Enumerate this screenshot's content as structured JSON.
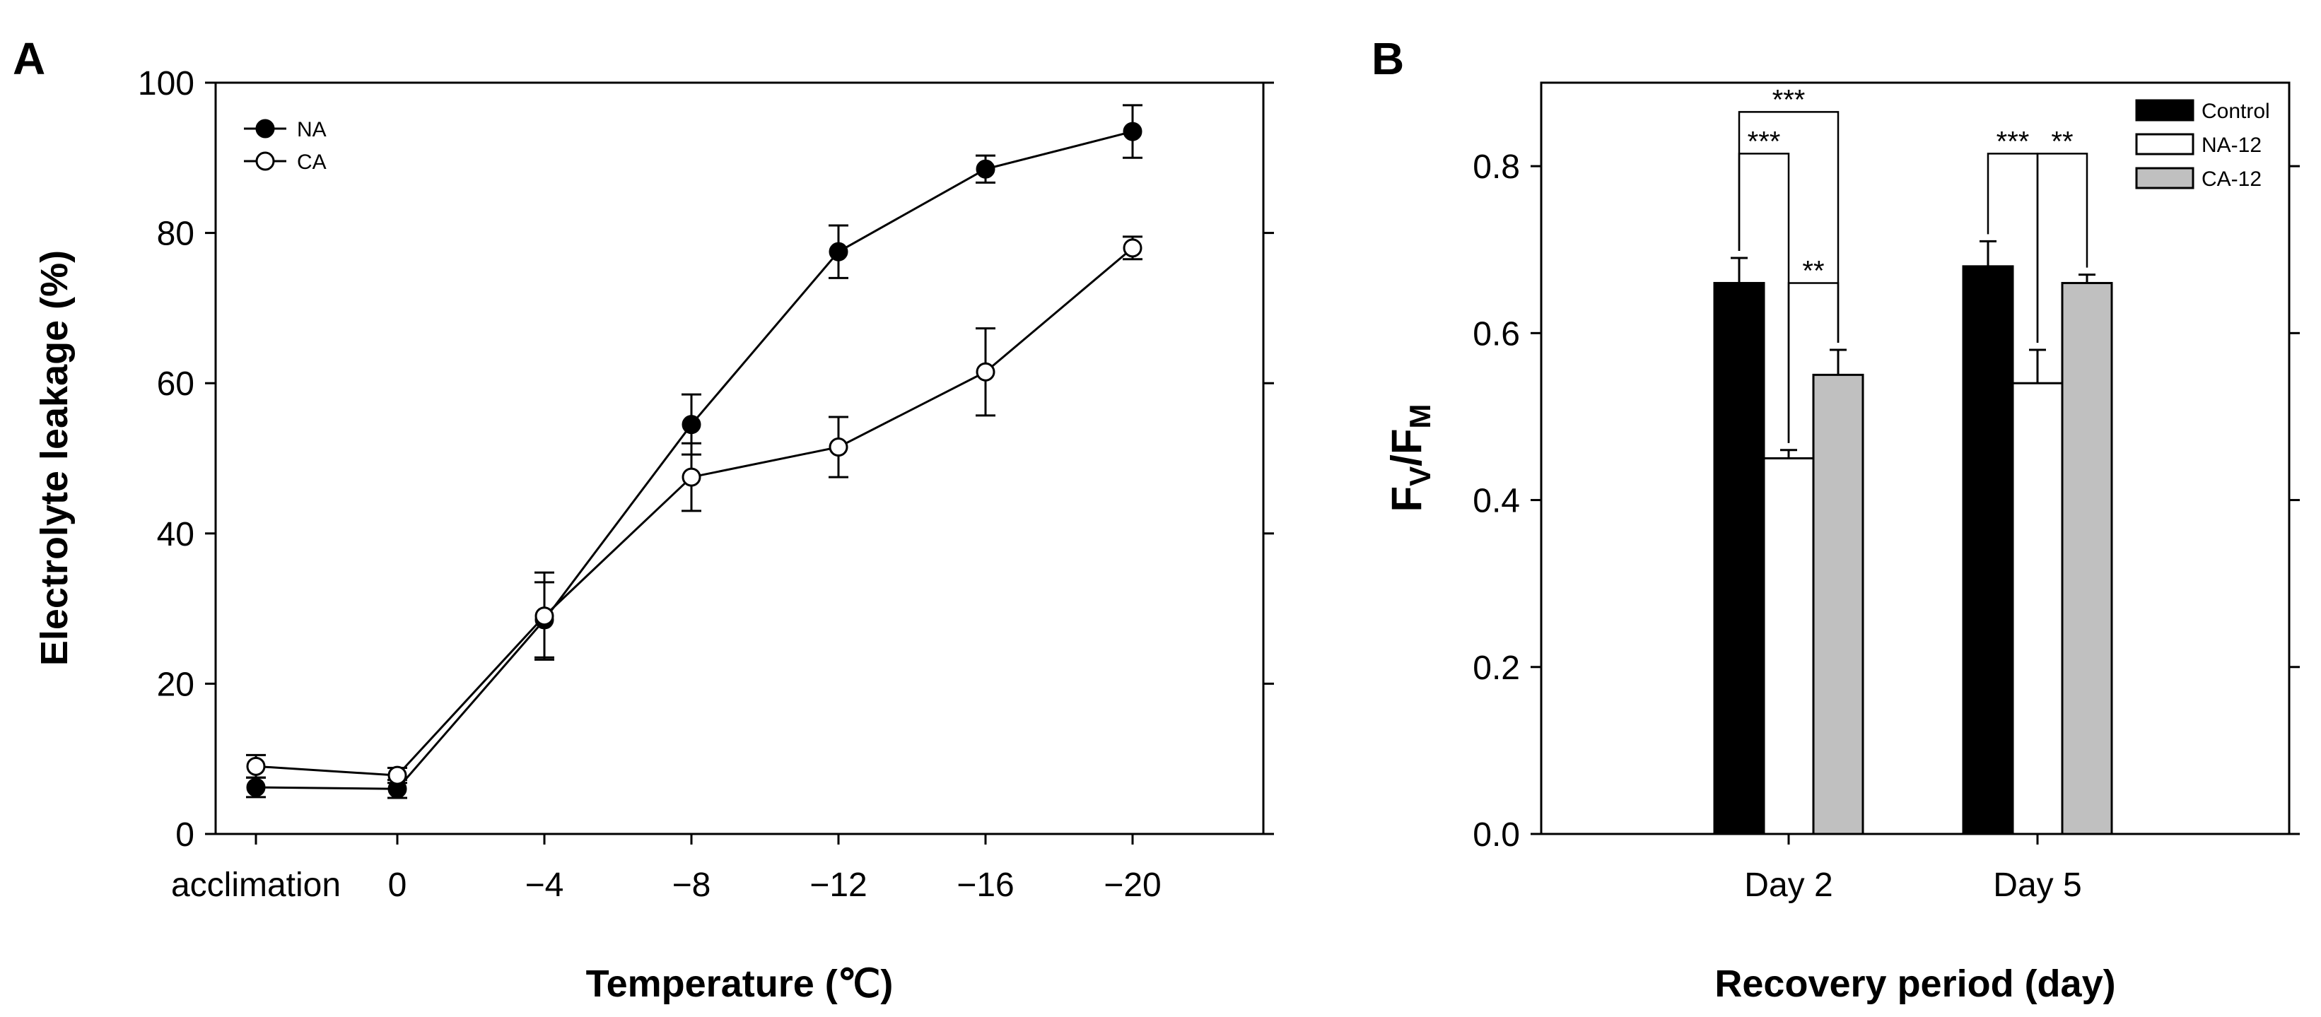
{
  "chart_data": [
    {
      "panel": "A",
      "type": "line",
      "title": "",
      "xlabel": "Temperature (℃)",
      "ylabel": "Electrolyte leakage (%)",
      "ylim": [
        0,
        100
      ],
      "yticks": [
        "0",
        "20",
        "40",
        "60",
        "80",
        "100"
      ],
      "categories": [
        "acclimation",
        "0",
        "−4",
        "−8",
        "−12",
        "−16",
        "−20"
      ],
      "series": [
        {
          "name": "NA",
          "marker": "filled-circle",
          "values": [
            6.2,
            6.0,
            28.5,
            54.5,
            77.5,
            88.5,
            93.5
          ],
          "errors": [
            1.3,
            1.2,
            5.0,
            4.0,
            3.5,
            1.8,
            3.5
          ]
        },
        {
          "name": "CA",
          "marker": "open-circle",
          "values": [
            9.0,
            7.8,
            29.0,
            47.5,
            51.5,
            61.5,
            78.0
          ],
          "errors": [
            1.5,
            1.0,
            5.8,
            4.5,
            4.0,
            5.8,
            1.5
          ]
        }
      ],
      "legend_position": "top-left",
      "grid": false
    },
    {
      "panel": "B",
      "type": "bar",
      "title": "",
      "xlabel": "Recovery period (day)",
      "ylabel_main": "F",
      "ylabel_sub1": "V",
      "ylabel_slash": "/F",
      "ylabel_sub2": "M",
      "ylim": [
        0,
        0.9
      ],
      "yticks": [
        "0.0",
        "0.2",
        "0.4",
        "0.6",
        "0.8"
      ],
      "categories": [
        "Day 2",
        "Day 5"
      ],
      "series": [
        {
          "name": "Control",
          "color": "#000000",
          "values": [
            0.66,
            0.68
          ],
          "errors": [
            0.03,
            0.03
          ]
        },
        {
          "name": "NA-12",
          "color": "#ffffff",
          "values": [
            0.45,
            0.54
          ],
          "errors": [
            0.01,
            0.04
          ]
        },
        {
          "name": "CA-12",
          "color": "#c0c0c0",
          "values": [
            0.55,
            0.66
          ],
          "errors": [
            0.03,
            0.01
          ]
        }
      ],
      "significance": [
        {
          "category": 0,
          "from": 0,
          "to": 2,
          "label": "***"
        },
        {
          "category": 0,
          "from": 0,
          "to": 1,
          "label": "***"
        },
        {
          "category": 0,
          "from": 1,
          "to": 2,
          "label": "**"
        },
        {
          "category": 1,
          "from": 0,
          "to": 1,
          "label": "***"
        },
        {
          "category": 1,
          "from": 1,
          "to": 2,
          "label": "**"
        }
      ],
      "legend_position": "top-right",
      "grid": false
    }
  ]
}
